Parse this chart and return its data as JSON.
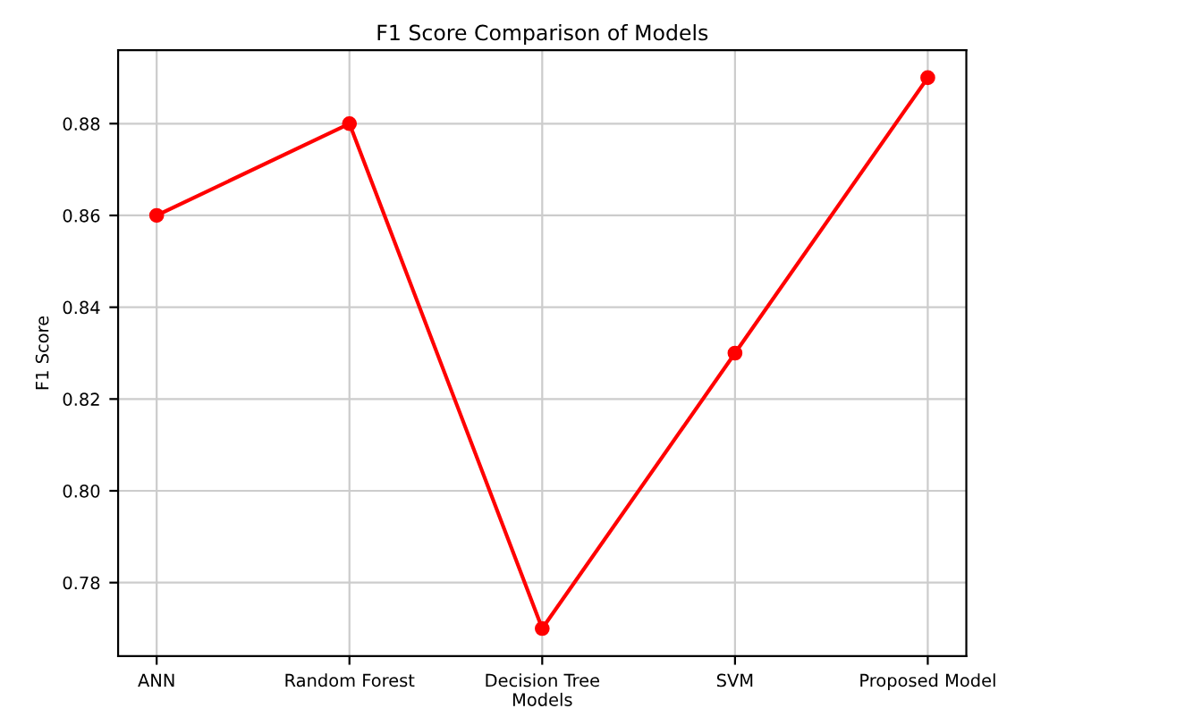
{
  "chart_data": {
    "type": "line",
    "title": "F1 Score Comparison of Models",
    "xlabel": "Models",
    "ylabel": "F1 Score",
    "categories": [
      "ANN",
      "Random Forest",
      "Decision Tree",
      "SVM",
      "Proposed Model"
    ],
    "series": [
      {
        "color": "#ff0000",
        "values": [
          0.86,
          0.88,
          0.77,
          0.83,
          0.89
        ]
      }
    ],
    "ylim": [
      0.764,
      0.896
    ],
    "yticks": [
      {
        "value": 0.78,
        "label": "0.78"
      },
      {
        "value": 0.8,
        "label": "0.80"
      },
      {
        "value": 0.82,
        "label": "0.82"
      },
      {
        "value": 0.84,
        "label": "0.84"
      },
      {
        "value": 0.86,
        "label": "0.86"
      },
      {
        "value": 0.88,
        "label": "0.88"
      }
    ],
    "grid": true,
    "marker": "circle",
    "line_style": "solid"
  }
}
